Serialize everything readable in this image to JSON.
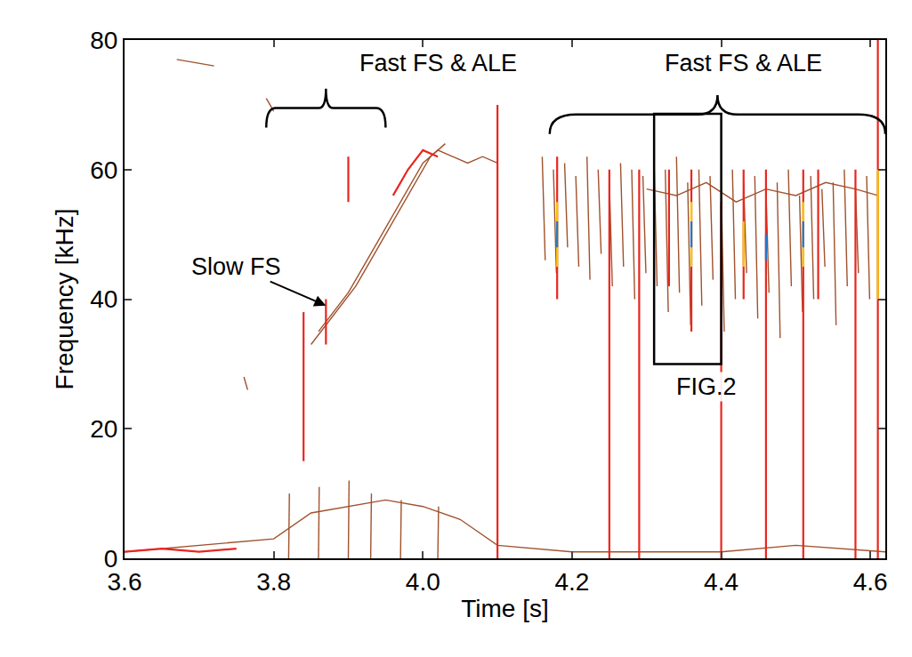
{
  "chart_data": {
    "type": "line",
    "xlabel": "Time [s]",
    "ylabel": "Frequency [kHz]",
    "xlim": [
      3.6,
      4.62
    ],
    "ylim": [
      0,
      80
    ],
    "xticks": [
      3.6,
      3.8,
      {
        "value": 4.0,
        "label": "4.0"
      },
      4.2,
      4.4,
      4.6
    ],
    "yticks": [
      0,
      20,
      40,
      60,
      80
    ],
    "grid": false,
    "series": [
      {
        "color": "#a0522d",
        "x": [
          3.6,
          3.7,
          3.8,
          3.85,
          3.9,
          3.95,
          4.0,
          4.05,
          4.1,
          4.2,
          4.3,
          4.4,
          4.5,
          4.62
        ],
        "values": [
          1,
          2,
          3,
          7,
          8,
          9,
          8,
          6,
          2,
          1,
          1,
          1,
          2,
          1
        ]
      },
      {
        "color": "#a0522d",
        "x": [
          3.82,
          3.821,
          null,
          3.86,
          3.861,
          null,
          3.9,
          3.901,
          null,
          3.93,
          3.931,
          null,
          3.97,
          3.971,
          null,
          4.02,
          4.021,
          null,
          3.67,
          3.72,
          null,
          3.79,
          3.8,
          null,
          3.76,
          3.765
        ],
        "values": [
          0,
          10,
          null,
          0,
          11,
          null,
          0,
          12,
          null,
          0,
          10,
          null,
          0,
          9,
          null,
          0,
          8,
          null,
          77,
          76,
          null,
          71,
          69,
          null,
          28,
          26
        ]
      },
      {
        "color": "#a0522d",
        "x": [
          3.86,
          3.88,
          3.9,
          3.92,
          3.94,
          3.96,
          3.98,
          4.0,
          4.02,
          4.04,
          4.06,
          4.08,
          4.1
        ],
        "values": [
          35,
          38,
          41,
          45,
          49,
          53,
          57,
          61,
          63,
          62,
          61,
          62,
          61
        ]
      },
      {
        "color": "#a0522d",
        "x": [
          3.85,
          3.87,
          3.89,
          3.91,
          3.93,
          3.95,
          3.97,
          3.99,
          4.01,
          4.03
        ],
        "values": [
          33,
          36,
          39,
          42,
          46,
          50,
          54,
          58,
          62,
          64
        ]
      },
      {
        "color": "#e8261e",
        "x": [
          3.96,
          3.98,
          4.0,
          4.02
        ],
        "values": [
          56,
          60,
          63,
          62
        ]
      },
      {
        "color": "#a0522d",
        "x": [
          4.16,
          4.164,
          null,
          4.175,
          4.179,
          null,
          4.19,
          4.194,
          null,
          4.205,
          4.209,
          null,
          4.22,
          4.224,
          null,
          4.235,
          4.239,
          null,
          4.25,
          4.254,
          null,
          4.265,
          4.269,
          null,
          4.28,
          4.284,
          null,
          4.295,
          4.299,
          null,
          4.31,
          4.314,
          null,
          4.325,
          4.329,
          null,
          4.34,
          4.344,
          null,
          4.355,
          4.359,
          null,
          4.37,
          4.374,
          null,
          4.385,
          4.389,
          null,
          4.4,
          4.404,
          null,
          4.415,
          4.419,
          null,
          4.43,
          4.434,
          null,
          4.445,
          4.449,
          null,
          4.46,
          4.464,
          null,
          4.475,
          4.479,
          null,
          4.49,
          4.494,
          null,
          4.505,
          4.509,
          null,
          4.52,
          4.524,
          null,
          4.535,
          4.539,
          null,
          4.55,
          4.554,
          null,
          4.565,
          4.569,
          null,
          4.58,
          4.584,
          null,
          4.595,
          4.599
        ],
        "values": [
          62,
          46,
          null,
          60,
          44,
          null,
          61,
          48,
          null,
          59,
          45,
          null,
          62,
          43,
          null,
          60,
          47,
          null,
          58,
          42,
          null,
          61,
          45,
          null,
          60,
          40,
          null,
          59,
          44,
          null,
          61,
          42,
          null,
          60,
          38,
          null,
          62,
          41,
          null,
          58,
          36,
          null,
          60,
          39,
          null,
          59,
          43,
          null,
          57,
          35,
          null,
          60,
          40,
          null,
          58,
          44,
          null,
          59,
          37,
          null,
          57,
          41,
          null,
          58,
          34,
          null,
          60,
          42,
          null,
          56,
          38,
          null,
          59,
          40,
          null,
          57,
          45,
          null,
          58,
          36,
          null,
          60,
          42,
          null,
          57,
          44,
          null,
          59,
          40
        ]
      },
      {
        "color": "#a0522d",
        "x": [
          4.3,
          4.34,
          4.38,
          4.42,
          4.46,
          4.5,
          4.54,
          4.58,
          4.61
        ],
        "values": [
          57,
          56,
          58,
          55,
          57,
          56,
          58,
          57,
          56
        ]
      },
      {
        "color": "#e8261e",
        "x": [
          3.6,
          3.65,
          3.7,
          3.75,
          null,
          3.84,
          3.84,
          null,
          3.87,
          3.87,
          null,
          3.9,
          3.9,
          null,
          4.1,
          4.1,
          null,
          4.18,
          4.18,
          null,
          4.25,
          4.25,
          null,
          4.29,
          4.29,
          null,
          4.33,
          4.33,
          null,
          4.36,
          4.36,
          null,
          4.4,
          4.4,
          null,
          4.43,
          4.43,
          null,
          4.46,
          4.46,
          null,
          4.51,
          4.51,
          null,
          4.53,
          4.53,
          null,
          4.58,
          4.58,
          null,
          4.61,
          4.61
        ],
        "values": [
          1,
          1.5,
          1,
          1.5,
          null,
          15,
          38,
          null,
          33,
          40,
          null,
          55,
          62,
          null,
          0,
          70,
          null,
          40,
          62,
          null,
          0,
          60,
          null,
          0,
          60,
          null,
          42,
          60,
          null,
          35,
          60,
          null,
          0,
          55,
          null,
          40,
          60,
          null,
          0,
          60,
          null,
          0,
          60,
          null,
          40,
          60,
          null,
          0,
          60,
          null,
          0,
          80
        ]
      },
      {
        "color": "#f5c800",
        "x": [
          4.18,
          4.18,
          null,
          4.36,
          4.36,
          null,
          4.43,
          4.43,
          null,
          4.51,
          4.51,
          null,
          4.61,
          4.61
        ],
        "values": [
          45,
          55,
          null,
          45,
          55,
          null,
          45,
          52,
          null,
          45,
          55,
          null,
          40,
          60
        ]
      },
      {
        "color": "#1e78d0",
        "x": [
          4.18,
          4.18,
          null,
          4.36,
          4.36,
          null,
          4.46,
          4.46,
          null,
          4.51,
          4.51
        ],
        "values": [
          48,
          52,
          null,
          48,
          52,
          null,
          46,
          50,
          null,
          48,
          52
        ]
      }
    ],
    "annotations": [
      {
        "text": "Fast FS & ALE",
        "x": 4.02,
        "y": 76.5,
        "brace": [
          3.79,
          3.95,
          69.5
        ]
      },
      {
        "text": "Fast FS & ALE",
        "x": 4.43,
        "y": 76.5,
        "brace": [
          4.17,
          4.62,
          68.5
        ]
      },
      {
        "text": "Slow FS",
        "x": 3.87,
        "y": 39,
        "ax": 3.75,
        "ay": 45
      },
      {
        "text": "FIG.2",
        "x": 4.38,
        "y": 26.5
      }
    ],
    "box": {
      "x": [
        4.31,
        4.4
      ],
      "y": [
        30,
        68.6
      ]
    }
  }
}
